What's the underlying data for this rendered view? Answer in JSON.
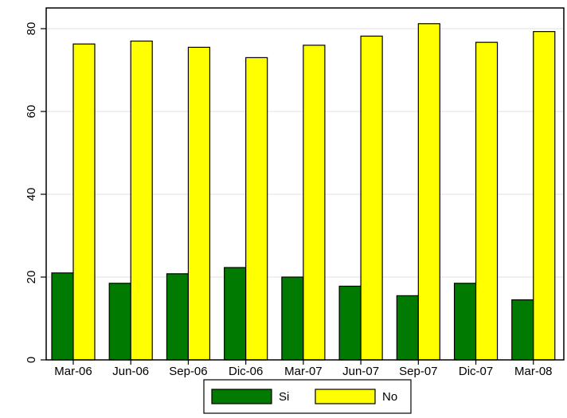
{
  "chart_data": {
    "type": "bar",
    "categories": [
      "Mar-06",
      "Jun-06",
      "Sep-06",
      "Dic-06",
      "Mar-07",
      "Jun-07",
      "Sep-07",
      "Dic-07",
      "Mar-08"
    ],
    "series": [
      {
        "name": "Si",
        "color": "#007a00",
        "values": [
          21,
          18.5,
          20.8,
          22.3,
          20,
          17.8,
          15.5,
          18.5,
          14.5
        ]
      },
      {
        "name": "No",
        "color": "#ffff00",
        "values": [
          76.3,
          77,
          75.5,
          73,
          76,
          78.2,
          81.2,
          76.7,
          79.3
        ]
      }
    ],
    "title": "",
    "xlabel": "",
    "ylabel": "",
    "ylim": [
      0,
      80
    ],
    "yticks": [
      0,
      20,
      40,
      60,
      80
    ],
    "grid": true,
    "legend_position": "bottom"
  }
}
